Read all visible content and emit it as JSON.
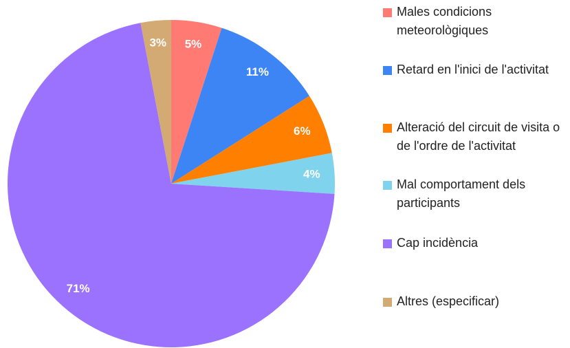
{
  "chart_data": {
    "type": "pie",
    "categories": [
      "Males condicions meteorològiques",
      "Retard en l'inici de l'activitat",
      "Alteració del circuit de visita o de l'ordre de l'activitat",
      "Mal comportament dels participants",
      "Cap incidència",
      "Altres (especificar)"
    ],
    "values": [
      5,
      11,
      6,
      4,
      71,
      3
    ],
    "value_labels": [
      "5%",
      "11%",
      "6%",
      "4%",
      "71%",
      "3%"
    ],
    "colors": [
      "#fe7a72",
      "#3d85f5",
      "#ff7f00",
      "#7fd3ec",
      "#9b72fe",
      "#d4aa74"
    ]
  }
}
